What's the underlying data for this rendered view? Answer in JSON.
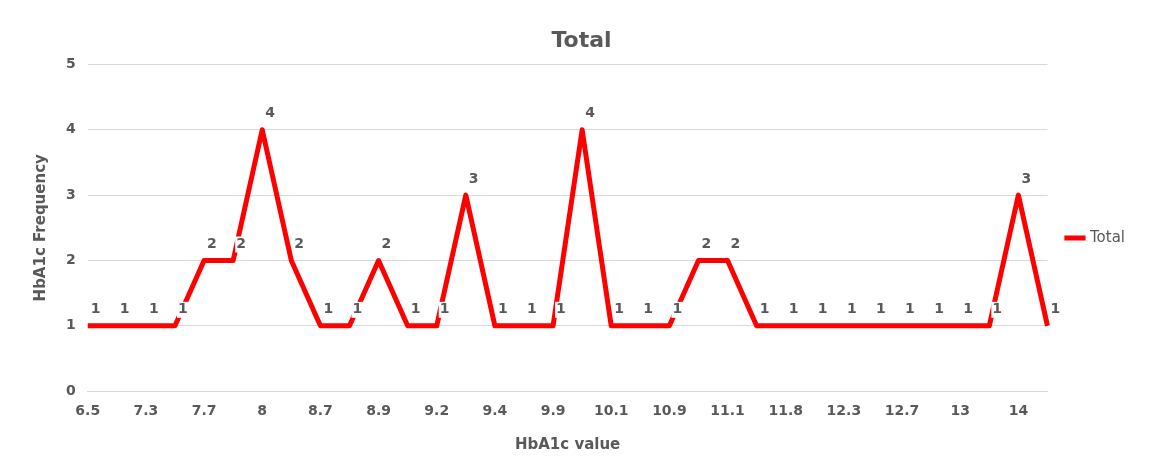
{
  "chart_data": {
    "type": "line",
    "title": "Total",
    "xlabel": "HbA1c value",
    "ylabel": "HbA1c Frequency",
    "categories": [
      "6.5",
      null,
      "7.3",
      null,
      "7.7",
      null,
      "8",
      null,
      "8.7",
      null,
      "8.9",
      null,
      "9.2",
      null,
      "9.4",
      null,
      "9.9",
      null,
      "10.1",
      null,
      "10.9",
      null,
      "11.1",
      null,
      "11.8",
      null,
      "12.3",
      null,
      "12.7",
      null,
      "13",
      null,
      "14",
      null
    ],
    "series": [
      {
        "name": "Total",
        "color": "#ff0000",
        "values": [
          1,
          1,
          1,
          1,
          2,
          2,
          4,
          2,
          1,
          1,
          2,
          1,
          1,
          3,
          1,
          1,
          1,
          4,
          1,
          1,
          1,
          2,
          2,
          1,
          1,
          1,
          1,
          1,
          1,
          1,
          1,
          1,
          3,
          1
        ]
      }
    ],
    "ylim": [
      0,
      5
    ],
    "yticks": [
      0,
      1,
      2,
      3,
      4,
      5
    ],
    "grid": "y",
    "legend": "right",
    "marker": "none",
    "line_style": "solid",
    "data_labels": true
  }
}
